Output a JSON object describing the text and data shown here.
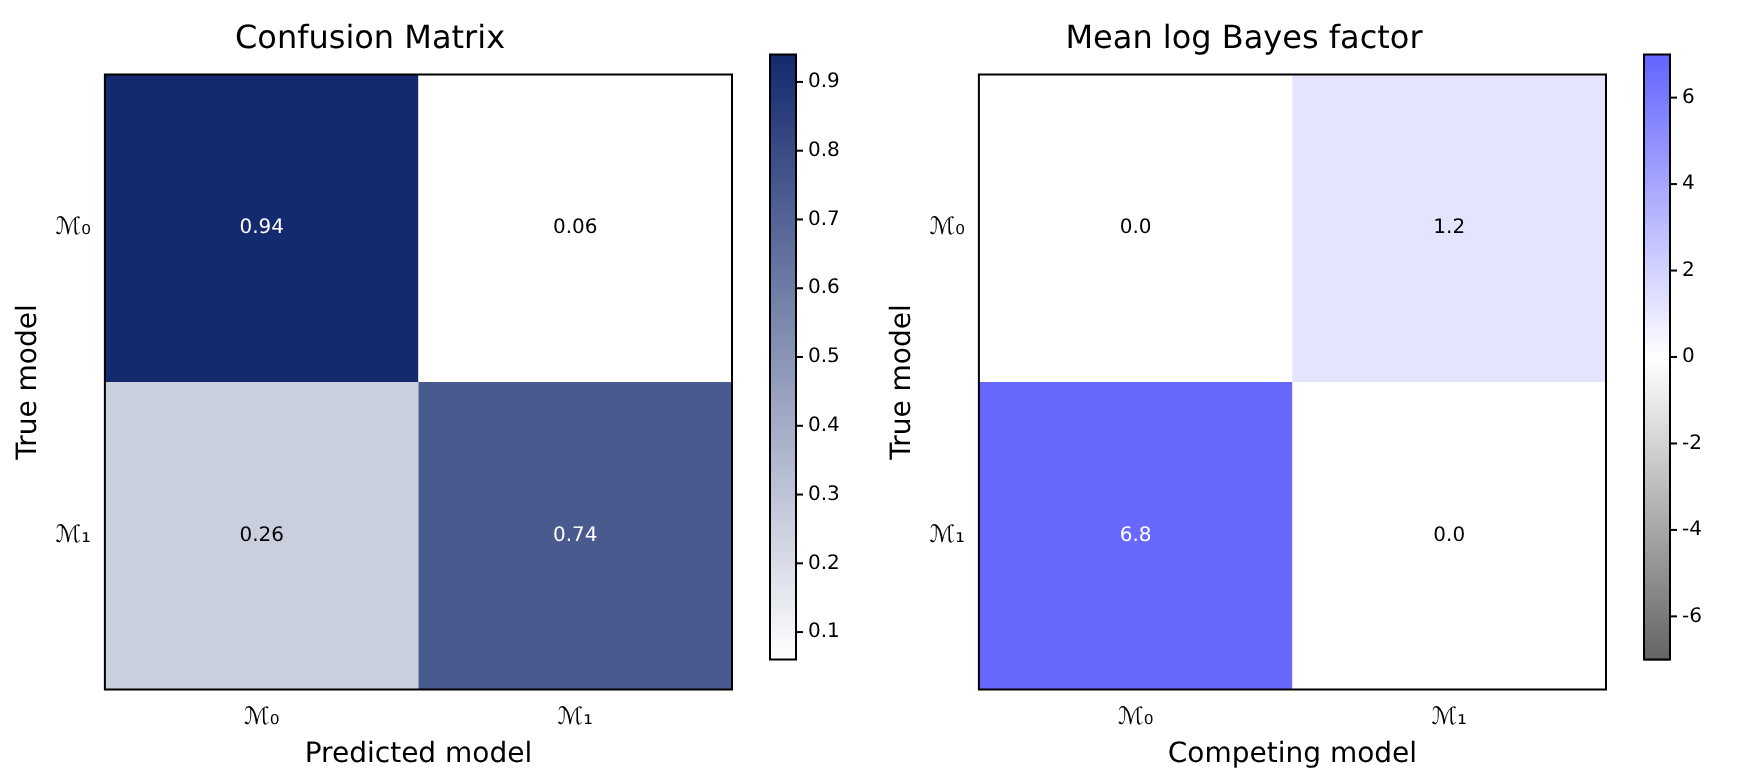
{
  "chart_data": [
    {
      "type": "heatmap",
      "title": "Confusion Matrix",
      "xlabel": "Predicted model",
      "ylabel": "True model",
      "categories": [
        "ℳ₀",
        "ℳ₁"
      ],
      "y_categories": [
        "ℳ₀",
        "ℳ₁"
      ],
      "cells": [
        [
          0.94,
          0.06
        ],
        [
          0.26,
          0.74
        ]
      ],
      "data_labels": true,
      "clim": [
        0.06,
        0.94
      ],
      "cticks": [
        0.1,
        0.2,
        0.3,
        0.4,
        0.5,
        0.6,
        0.7,
        0.8,
        0.9
      ],
      "colors": [
        "#ffffff",
        "#142a6e"
      ]
    },
    {
      "type": "heatmap",
      "title": "Mean log Bayes factor",
      "xlabel": "Competing model",
      "ylabel": "True model",
      "categories": [
        "ℳ₀",
        "ℳ₁"
      ],
      "y_categories": [
        "ℳ₀",
        "ℳ₁"
      ],
      "cells": [
        [
          0.0,
          1.2
        ],
        [
          6.8,
          0.0
        ]
      ],
      "cell_labels": [
        [
          "0.0",
          "1.2"
        ],
        [
          "6.8",
          "0.0"
        ]
      ],
      "clim": [
        -7,
        7
      ],
      "cticks": [
        -6,
        -4,
        -2,
        0,
        2,
        4,
        6
      ],
      "colors": [
        "#646464",
        "#ffffff",
        "#6464ff"
      ]
    }
  ]
}
